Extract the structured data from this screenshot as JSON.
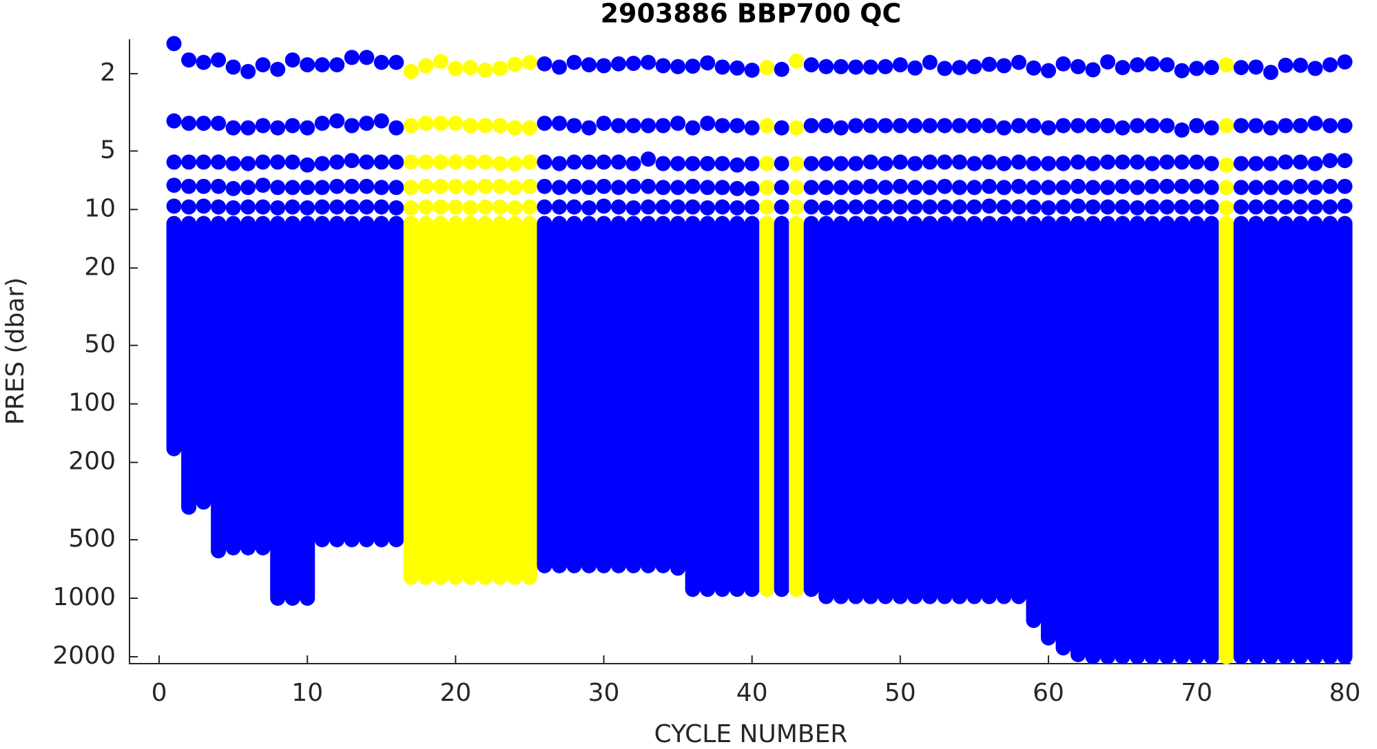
{
  "chart_data": {
    "type": "scatter",
    "title": "2903886 BBP700 QC",
    "xlabel": "CYCLE NUMBER",
    "ylabel": "PRES (dbar)",
    "xlim": [
      -2,
      80.4
    ],
    "xticks": [
      0,
      10,
      20,
      30,
      40,
      50,
      60,
      70,
      80
    ],
    "ylim": [
      1.33,
      2170
    ],
    "yticks": [
      2,
      5,
      10,
      20,
      50,
      100,
      200,
      500,
      1000,
      2000
    ],
    "ylog": true,
    "yreversed": true,
    "profiles": [
      {
        "x": 1,
        "color": "#0000ff",
        "pres": [
          1.4,
          3.5,
          5.7,
          7.5,
          9.6
        ],
        "column": [
          11.8,
          170
        ]
      },
      {
        "x": 2,
        "color": "#0000ff",
        "pres": [
          1.7,
          3.6,
          5.7,
          7.6,
          9.7
        ],
        "column": [
          11.8,
          340
        ]
      },
      {
        "x": 3,
        "color": "#0000ff",
        "pres": [
          1.75,
          3.6,
          5.7,
          7.6,
          9.6
        ],
        "column": [
          11.8,
          320
        ]
      },
      {
        "x": 4,
        "color": "#0000ff",
        "pres": [
          1.7,
          3.6,
          5.7,
          7.6,
          9.7
        ],
        "column": [
          11.8,
          570
        ]
      },
      {
        "x": 5,
        "color": "#0000ff",
        "pres": [
          1.85,
          3.8,
          5.8,
          7.8,
          9.8
        ],
        "column": [
          11.8,
          550
        ]
      },
      {
        "x": 6,
        "color": "#0000ff",
        "pres": [
          1.95,
          3.8,
          5.8,
          7.7,
          9.7
        ],
        "column": [
          11.8,
          550
        ]
      },
      {
        "x": 7,
        "color": "#0000ff",
        "pres": [
          1.8,
          3.7,
          5.7,
          7.5,
          9.7
        ],
        "column": [
          11.8,
          550
        ]
      },
      {
        "x": 8,
        "color": "#0000ff",
        "pres": [
          1.9,
          3.8,
          5.7,
          7.7,
          9.8
        ],
        "column": [
          11.8,
          1000
        ]
      },
      {
        "x": 9,
        "color": "#0000ff",
        "pres": [
          1.7,
          3.7,
          5.7,
          7.7,
          9.7
        ],
        "column": [
          11.8,
          1000
        ]
      },
      {
        "x": 10,
        "color": "#0000ff",
        "pres": [
          1.8,
          3.8,
          5.9,
          7.7,
          9.8
        ],
        "column": [
          11.8,
          1000
        ]
      },
      {
        "x": 11,
        "color": "#0000ff",
        "pres": [
          1.8,
          3.6,
          5.8,
          7.7,
          9.7
        ],
        "column": [
          11.8,
          500
        ]
      },
      {
        "x": 12,
        "color": "#0000ff",
        "pres": [
          1.8,
          3.5,
          5.7,
          7.6,
          9.7
        ],
        "column": [
          11.8,
          500
        ]
      },
      {
        "x": 13,
        "color": "#0000ff",
        "pres": [
          1.65,
          3.7,
          5.6,
          7.6,
          9.7
        ],
        "column": [
          11.8,
          500
        ]
      },
      {
        "x": 14,
        "color": "#0000ff",
        "pres": [
          1.65,
          3.6,
          5.7,
          7.6,
          9.7
        ],
        "column": [
          11.8,
          500
        ]
      },
      {
        "x": 15,
        "color": "#0000ff",
        "pres": [
          1.75,
          3.5,
          5.7,
          7.7,
          9.7
        ],
        "column": [
          11.8,
          500
        ]
      },
      {
        "x": 16,
        "color": "#0000ff",
        "pres": [
          1.75,
          3.8,
          5.7,
          7.7,
          9.8
        ],
        "column": [
          11.8,
          500
        ]
      },
      {
        "x": 17,
        "color": "#ffff00",
        "pres": [
          1.95,
          3.7,
          5.7,
          7.7,
          9.8
        ],
        "column": [
          11.8,
          780
        ]
      },
      {
        "x": 18,
        "color": "#ffff00",
        "pres": [
          1.82,
          3.6,
          5.7,
          7.6,
          9.7
        ],
        "column": [
          11.8,
          780
        ]
      },
      {
        "x": 19,
        "color": "#ffff00",
        "pres": [
          1.73,
          3.6,
          5.7,
          7.6,
          9.7
        ],
        "column": [
          11.8,
          780
        ]
      },
      {
        "x": 20,
        "color": "#ffff00",
        "pres": [
          1.88,
          3.6,
          5.7,
          7.6,
          9.7
        ],
        "column": [
          11.8,
          780
        ]
      },
      {
        "x": 21,
        "color": "#ffff00",
        "pres": [
          1.86,
          3.7,
          5.7,
          7.7,
          9.8
        ],
        "column": [
          11.8,
          780
        ]
      },
      {
        "x": 22,
        "color": "#ffff00",
        "pres": [
          1.92,
          3.7,
          5.7,
          7.6,
          9.7
        ],
        "column": [
          11.8,
          780
        ]
      },
      {
        "x": 23,
        "color": "#ffff00",
        "pres": [
          1.88,
          3.7,
          5.8,
          7.6,
          9.7
        ],
        "column": [
          11.8,
          780
        ]
      },
      {
        "x": 24,
        "color": "#ffff00",
        "pres": [
          1.79,
          3.8,
          5.8,
          7.7,
          9.8
        ],
        "column": [
          11.8,
          780
        ]
      },
      {
        "x": 25,
        "color": "#ffff00",
        "pres": [
          1.75,
          3.8,
          5.7,
          7.6,
          9.7
        ],
        "column": [
          11.8,
          780
        ]
      },
      {
        "x": 26,
        "color": "#0000ff",
        "pres": [
          1.78,
          3.6,
          5.7,
          7.6,
          9.7
        ],
        "column": [
          11.8,
          680
        ]
      },
      {
        "x": 27,
        "color": "#0000ff",
        "pres": [
          1.85,
          3.6,
          5.8,
          7.7,
          9.7
        ],
        "column": [
          11.8,
          680
        ]
      },
      {
        "x": 28,
        "color": "#0000ff",
        "pres": [
          1.75,
          3.7,
          5.7,
          7.6,
          9.7
        ],
        "column": [
          11.8,
          680
        ]
      },
      {
        "x": 29,
        "color": "#0000ff",
        "pres": [
          1.8,
          3.8,
          5.7,
          7.7,
          9.8
        ],
        "column": [
          11.8,
          680
        ]
      },
      {
        "x": 30,
        "color": "#0000ff",
        "pres": [
          1.82,
          3.6,
          5.7,
          7.6,
          9.6
        ],
        "column": [
          11.8,
          680
        ]
      },
      {
        "x": 31,
        "color": "#0000ff",
        "pres": [
          1.78,
          3.7,
          5.7,
          7.7,
          9.7
        ],
        "column": [
          11.8,
          680
        ]
      },
      {
        "x": 32,
        "color": "#0000ff",
        "pres": [
          1.77,
          3.7,
          5.8,
          7.6,
          9.8
        ],
        "column": [
          11.8,
          680
        ]
      },
      {
        "x": 33,
        "color": "#0000ff",
        "pres": [
          1.75,
          3.7,
          5.5,
          7.6,
          9.7
        ],
        "column": [
          11.8,
          680
        ]
      },
      {
        "x": 34,
        "color": "#0000ff",
        "pres": [
          1.82,
          3.7,
          5.8,
          7.7,
          9.7
        ],
        "column": [
          11.8,
          680
        ]
      },
      {
        "x": 35,
        "color": "#0000ff",
        "pres": [
          1.84,
          3.6,
          5.8,
          7.7,
          9.7
        ],
        "column": [
          11.8,
          700
        ]
      },
      {
        "x": 36,
        "color": "#0000ff",
        "pres": [
          1.83,
          3.8,
          5.8,
          7.6,
          9.7
        ],
        "column": [
          11.8,
          900
        ]
      },
      {
        "x": 37,
        "color": "#0000ff",
        "pres": [
          1.76,
          3.6,
          5.8,
          7.7,
          9.8
        ],
        "column": [
          11.8,
          900
        ]
      },
      {
        "x": 38,
        "color": "#0000ff",
        "pres": [
          1.85,
          3.7,
          5.8,
          7.7,
          9.7
        ],
        "column": [
          11.8,
          900
        ]
      },
      {
        "x": 39,
        "color": "#0000ff",
        "pres": [
          1.87,
          3.7,
          5.9,
          7.8,
          9.8
        ],
        "column": [
          11.8,
          900
        ]
      },
      {
        "x": 40,
        "color": "#0000ff",
        "pres": [
          1.92,
          3.8,
          5.8,
          7.8,
          9.7
        ],
        "column": [
          11.8,
          900
        ]
      },
      {
        "x": 41,
        "color": "#ffff00",
        "pres": [
          1.86,
          3.7,
          5.8,
          7.7,
          9.7
        ],
        "column": [
          11.8,
          900
        ]
      },
      {
        "x": 42,
        "color": "#0000ff",
        "pres": [
          1.9,
          3.8,
          5.8,
          7.7,
          9.7
        ],
        "column": [
          11.8,
          900
        ]
      },
      {
        "x": 43,
        "color": "#ffff00",
        "pres": [
          1.72,
          3.8,
          5.8,
          7.7,
          9.7
        ],
        "column": [
          11.8,
          900
        ]
      },
      {
        "x": 44,
        "color": "#0000ff",
        "pres": [
          1.8,
          3.7,
          5.8,
          7.7,
          9.7
        ],
        "column": [
          11.8,
          900
        ]
      },
      {
        "x": 45,
        "color": "#0000ff",
        "pres": [
          1.84,
          3.7,
          5.8,
          7.7,
          9.8
        ],
        "column": [
          11.8,
          980
        ]
      },
      {
        "x": 46,
        "color": "#0000ff",
        "pres": [
          1.84,
          3.8,
          5.8,
          7.7,
          9.7
        ],
        "column": [
          11.8,
          980
        ]
      },
      {
        "x": 47,
        "color": "#0000ff",
        "pres": [
          1.85,
          3.7,
          5.8,
          7.7,
          9.7
        ],
        "column": [
          11.8,
          980
        ]
      },
      {
        "x": 48,
        "color": "#0000ff",
        "pres": [
          1.85,
          3.7,
          5.7,
          7.6,
          9.7
        ],
        "column": [
          11.8,
          980
        ]
      },
      {
        "x": 49,
        "color": "#0000ff",
        "pres": [
          1.84,
          3.7,
          5.8,
          7.7,
          9.7
        ],
        "column": [
          11.8,
          980
        ]
      },
      {
        "x": 50,
        "color": "#0000ff",
        "pres": [
          1.8,
          3.7,
          5.7,
          7.6,
          9.7
        ],
        "column": [
          11.8,
          980
        ]
      },
      {
        "x": 51,
        "color": "#0000ff",
        "pres": [
          1.87,
          3.7,
          5.8,
          7.7,
          9.7
        ],
        "column": [
          11.8,
          980
        ]
      },
      {
        "x": 52,
        "color": "#0000ff",
        "pres": [
          1.75,
          3.7,
          5.7,
          7.7,
          9.7
        ],
        "column": [
          11.8,
          980
        ]
      },
      {
        "x": 53,
        "color": "#0000ff",
        "pres": [
          1.88,
          3.7,
          5.7,
          7.6,
          9.7
        ],
        "column": [
          11.8,
          980
        ]
      },
      {
        "x": 54,
        "color": "#0000ff",
        "pres": [
          1.86,
          3.7,
          5.7,
          7.7,
          9.7
        ],
        "column": [
          11.8,
          980
        ]
      },
      {
        "x": 55,
        "color": "#0000ff",
        "pres": [
          1.84,
          3.7,
          5.8,
          7.7,
          9.7
        ],
        "column": [
          11.8,
          980
        ]
      },
      {
        "x": 56,
        "color": "#0000ff",
        "pres": [
          1.79,
          3.7,
          5.7,
          7.6,
          9.6
        ],
        "column": [
          11.8,
          980
        ]
      },
      {
        "x": 57,
        "color": "#0000ff",
        "pres": [
          1.82,
          3.8,
          5.8,
          7.7,
          9.7
        ],
        "column": [
          11.8,
          980
        ]
      },
      {
        "x": 58,
        "color": "#0000ff",
        "pres": [
          1.75,
          3.7,
          5.7,
          7.6,
          9.7
        ],
        "column": [
          11.8,
          980
        ]
      },
      {
        "x": 59,
        "color": "#0000ff",
        "pres": [
          1.87,
          3.7,
          5.8,
          7.7,
          9.7
        ],
        "column": [
          11.8,
          1300
        ]
      },
      {
        "x": 60,
        "color": "#0000ff",
        "pres": [
          1.93,
          3.8,
          5.8,
          7.7,
          9.8
        ],
        "column": [
          11.8,
          1600
        ]
      },
      {
        "x": 61,
        "color": "#0000ff",
        "pres": [
          1.78,
          3.7,
          5.8,
          7.7,
          9.7
        ],
        "column": [
          11.8,
          1800
        ]
      },
      {
        "x": 62,
        "color": "#0000ff",
        "pres": [
          1.84,
          3.7,
          5.7,
          7.6,
          9.6
        ],
        "column": [
          11.8,
          1950
        ]
      },
      {
        "x": 63,
        "color": "#0000ff",
        "pres": [
          1.91,
          3.7,
          5.8,
          7.7,
          9.7
        ],
        "column": [
          11.8,
          2000
        ]
      },
      {
        "x": 64,
        "color": "#0000ff",
        "pres": [
          1.74,
          3.7,
          5.7,
          7.7,
          9.7
        ],
        "column": [
          11.8,
          2000
        ]
      },
      {
        "x": 65,
        "color": "#0000ff",
        "pres": [
          1.86,
          3.8,
          5.7,
          7.6,
          9.7
        ],
        "column": [
          11.8,
          2000
        ]
      },
      {
        "x": 66,
        "color": "#0000ff",
        "pres": [
          1.8,
          3.7,
          5.7,
          7.7,
          9.8
        ],
        "column": [
          11.8,
          2000
        ]
      },
      {
        "x": 67,
        "color": "#0000ff",
        "pres": [
          1.78,
          3.7,
          5.8,
          7.6,
          9.7
        ],
        "column": [
          11.8,
          2000
        ]
      },
      {
        "x": 68,
        "color": "#0000ff",
        "pres": [
          1.8,
          3.7,
          5.7,
          7.6,
          9.7
        ],
        "column": [
          11.8,
          2000
        ]
      },
      {
        "x": 69,
        "color": "#0000ff",
        "pres": [
          1.93,
          3.9,
          5.7,
          7.6,
          9.7
        ],
        "column": [
          11.8,
          2000
        ]
      },
      {
        "x": 70,
        "color": "#0000ff",
        "pres": [
          1.88,
          3.7,
          5.7,
          7.6,
          9.7
        ],
        "column": [
          11.8,
          2000
        ]
      },
      {
        "x": 71,
        "color": "#0000ff",
        "pres": [
          1.86,
          3.8,
          5.8,
          7.7,
          9.7
        ],
        "column": [
          11.8,
          2000
        ]
      },
      {
        "x": 72,
        "color": "#ffff00",
        "pres": [
          1.8,
          3.7,
          5.9,
          7.7,
          9.8
        ],
        "column": [
          11.8,
          2000
        ]
      },
      {
        "x": 73,
        "color": "#0000ff",
        "pres": [
          1.86,
          3.7,
          5.8,
          7.7,
          9.7
        ],
        "column": [
          11.8,
          2000
        ]
      },
      {
        "x": 74,
        "color": "#0000ff",
        "pres": [
          1.85,
          3.7,
          5.8,
          7.7,
          9.7
        ],
        "column": [
          11.8,
          2000
        ]
      },
      {
        "x": 75,
        "color": "#0000ff",
        "pres": [
          1.97,
          3.8,
          5.8,
          7.7,
          9.7
        ],
        "column": [
          11.8,
          2000
        ]
      },
      {
        "x": 76,
        "color": "#0000ff",
        "pres": [
          1.81,
          3.7,
          5.7,
          7.7,
          9.7
        ],
        "column": [
          11.8,
          2000
        ]
      },
      {
        "x": 77,
        "color": "#0000ff",
        "pres": [
          1.81,
          3.7,
          5.7,
          7.6,
          9.7
        ],
        "column": [
          11.8,
          2000
        ]
      },
      {
        "x": 78,
        "color": "#0000ff",
        "pres": [
          1.88,
          3.6,
          5.8,
          7.7,
          9.7
        ],
        "column": [
          11.8,
          2000
        ]
      },
      {
        "x": 79,
        "color": "#0000ff",
        "pres": [
          1.8,
          3.7,
          5.6,
          7.6,
          9.7
        ],
        "column": [
          11.8,
          2000
        ]
      },
      {
        "x": 80,
        "color": "#0000ff",
        "pres": [
          1.74,
          3.7,
          5.6,
          7.6,
          9.6
        ],
        "column": [
          11.8,
          2000
        ]
      }
    ]
  }
}
